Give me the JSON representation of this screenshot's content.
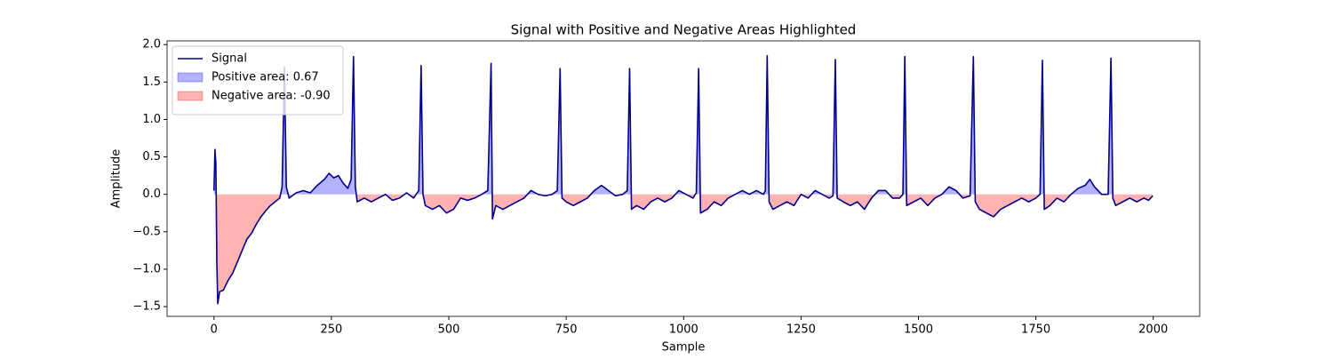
{
  "chart_data": {
    "type": "line",
    "title": "Signal with Positive and Negative Areas Highlighted",
    "x_label": "Sample",
    "y_label": "Amplitude",
    "x": [
      0,
      2,
      4,
      6,
      8,
      12,
      20,
      30,
      40,
      50,
      60,
      70,
      80,
      90,
      100,
      110,
      120,
      130,
      140,
      145,
      150,
      154,
      160,
      175,
      190,
      205,
      220,
      235,
      245,
      255,
      265,
      275,
      285,
      292,
      297,
      301,
      305,
      320,
      335,
      350,
      365,
      380,
      395,
      410,
      425,
      436,
      441,
      445,
      450,
      465,
      480,
      495,
      510,
      525,
      540,
      555,
      570,
      583,
      590,
      593,
      600,
      615,
      630,
      645,
      660,
      675,
      690,
      705,
      720,
      731,
      737,
      741,
      750,
      765,
      780,
      795,
      810,
      825,
      840,
      855,
      870,
      880,
      885,
      889,
      900,
      915,
      930,
      945,
      960,
      975,
      990,
      1005,
      1020,
      1027,
      1032,
      1036,
      1050,
      1065,
      1080,
      1095,
      1110,
      1125,
      1140,
      1155,
      1170,
      1174,
      1178,
      1182,
      1190,
      1205,
      1220,
      1235,
      1250,
      1265,
      1280,
      1295,
      1310,
      1318,
      1323,
      1327,
      1340,
      1355,
      1370,
      1385,
      1400,
      1415,
      1430,
      1445,
      1460,
      1467,
      1471,
      1475,
      1490,
      1505,
      1520,
      1535,
      1550,
      1565,
      1580,
      1595,
      1610,
      1617,
      1621,
      1630,
      1645,
      1660,
      1675,
      1690,
      1705,
      1720,
      1735,
      1750,
      1759,
      1764,
      1768,
      1780,
      1795,
      1810,
      1825,
      1840,
      1855,
      1865,
      1875,
      1890,
      1904,
      1910,
      1914,
      1920,
      1935,
      1950,
      1965,
      1980,
      1990,
      1999
    ],
    "series": [
      {
        "name": "Signal",
        "color": "#00008b",
        "values": [
          0.05,
          0.6,
          0.4,
          -0.9,
          -1.46,
          -1.3,
          -1.28,
          -1.15,
          -1.05,
          -0.9,
          -0.75,
          -0.6,
          -0.52,
          -0.4,
          -0.3,
          -0.22,
          -0.15,
          -0.1,
          -0.05,
          0.1,
          1.7,
          0.1,
          -0.05,
          0.02,
          0.05,
          0.02,
          0.12,
          0.2,
          0.28,
          0.22,
          0.25,
          0.15,
          0.08,
          0.2,
          1.84,
          0.1,
          -0.1,
          -0.05,
          -0.1,
          -0.05,
          0.0,
          -0.08,
          -0.05,
          0.02,
          -0.05,
          0.05,
          1.72,
          0.0,
          -0.15,
          -0.2,
          -0.15,
          -0.25,
          -0.2,
          -0.05,
          -0.08,
          -0.05,
          0.0,
          0.05,
          1.75,
          -0.33,
          -0.15,
          -0.2,
          -0.15,
          -0.1,
          -0.05,
          0.05,
          0.0,
          -0.02,
          0.0,
          0.05,
          1.68,
          -0.05,
          -0.1,
          -0.15,
          -0.1,
          -0.05,
          0.05,
          0.12,
          0.05,
          -0.02,
          0.0,
          0.05,
          1.68,
          -0.2,
          -0.15,
          -0.2,
          -0.1,
          -0.05,
          -0.1,
          -0.05,
          0.05,
          0.0,
          -0.05,
          0.02,
          1.68,
          -0.25,
          -0.2,
          -0.1,
          -0.15,
          -0.05,
          0.0,
          0.05,
          0.0,
          0.05,
          0.0,
          0.05,
          1.85,
          -0.1,
          -0.2,
          -0.15,
          -0.1,
          -0.15,
          0.0,
          -0.05,
          0.05,
          0.0,
          -0.05,
          -0.02,
          1.8,
          -0.05,
          -0.1,
          -0.15,
          -0.1,
          -0.2,
          -0.05,
          0.05,
          0.05,
          -0.05,
          -0.05,
          0.0,
          1.84,
          -0.15,
          -0.1,
          -0.05,
          -0.15,
          -0.05,
          0.0,
          0.1,
          0.05,
          -0.05,
          -0.02,
          1.84,
          -0.1,
          -0.2,
          -0.25,
          -0.3,
          -0.2,
          -0.15,
          -0.1,
          -0.05,
          -0.1,
          -0.05,
          0.0,
          1.79,
          -0.2,
          -0.15,
          -0.05,
          -0.1,
          0.0,
          0.08,
          0.12,
          0.2,
          0.1,
          0.0,
          0.0,
          1.82,
          -0.05,
          -0.15,
          -0.1,
          -0.05,
          -0.1,
          -0.05,
          -0.08,
          -0.02
        ]
      }
    ],
    "fills": [
      {
        "name": "Positive area: 0.67",
        "color": "#0000ff",
        "side": "positive"
      },
      {
        "name": "Negative area: -0.90",
        "color": "#ff0000",
        "side": "negative"
      }
    ],
    "xlim": [
      -99.95,
      2098.95
    ],
    "xticks": [
      0,
      250,
      500,
      750,
      1000,
      1250,
      1500,
      1750,
      2000
    ],
    "ylim": [
      -1.63,
      2.05
    ],
    "yticks": [
      {
        "value": -1.5,
        "label": "−1.5"
      },
      {
        "value": -1.0,
        "label": "−1.0"
      },
      {
        "value": -0.5,
        "label": "−0.5"
      },
      {
        "value": 0.0,
        "label": "0.0"
      },
      {
        "value": 0.5,
        "label": "0.5"
      },
      {
        "value": 1.0,
        "label": "1.0"
      },
      {
        "value": 1.5,
        "label": "1.5"
      },
      {
        "value": 2.0,
        "label": "2.0"
      }
    ],
    "legend": "upper left"
  }
}
